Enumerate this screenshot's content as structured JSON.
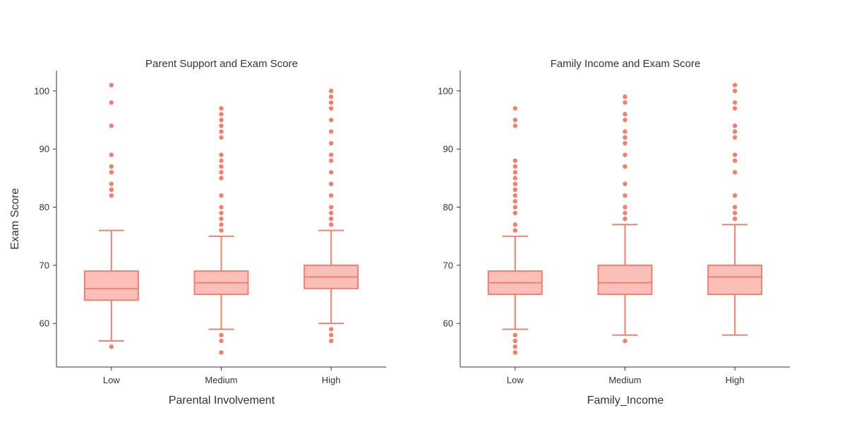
{
  "figure": {
    "ylabel": "Exam Score",
    "style": {
      "box_stroke": "#f08070",
      "box_fill": "#fbbfba",
      "point_color": "#f08070",
      "axis_color": "#333333",
      "text_color": "#333333"
    }
  },
  "chart_data": [
    {
      "type": "box",
      "title": "Parent Support and Exam Score",
      "xlabel": "Parental Involvement",
      "ylabel": "Exam Score",
      "ylim": [
        52.5,
        103.5
      ],
      "yticks": [
        60,
        70,
        80,
        90,
        100
      ],
      "grid": false,
      "categories": [
        "Low",
        "Medium",
        "High"
      ],
      "boxes": [
        {
          "category": "Low",
          "q1": 64,
          "median": 66,
          "q3": 69,
          "whisker_low": 57,
          "whisker_high": 76,
          "outliers": [
            56,
            82,
            83,
            84,
            86,
            87,
            89,
            94,
            98,
            101
          ]
        },
        {
          "category": "Medium",
          "q1": 65,
          "median": 67,
          "q3": 69,
          "whisker_low": 59,
          "whisker_high": 75,
          "outliers": [
            55,
            57,
            58,
            76,
            77,
            78,
            79,
            80,
            82,
            85,
            86,
            87,
            88,
            89,
            92,
            93,
            94,
            95,
            96,
            97
          ]
        },
        {
          "category": "High",
          "q1": 66,
          "median": 68,
          "q3": 70,
          "whisker_low": 60,
          "whisker_high": 76,
          "outliers": [
            57,
            58,
            59,
            77,
            78,
            79,
            80,
            82,
            84,
            86,
            88,
            89,
            91,
            93,
            95,
            97,
            98,
            99,
            100
          ]
        }
      ]
    },
    {
      "type": "box",
      "title": "Family Income and Exam Score",
      "xlabel": "Family_Income",
      "ylabel": "",
      "ylim": [
        52.5,
        103.5
      ],
      "yticks": [
        60,
        70,
        80,
        90,
        100
      ],
      "grid": false,
      "categories": [
        "Low",
        "Medium",
        "High"
      ],
      "boxes": [
        {
          "category": "Low",
          "q1": 65,
          "median": 67,
          "q3": 69,
          "whisker_low": 59,
          "whisker_high": 75,
          "outliers": [
            55,
            56,
            57,
            58,
            76,
            77,
            79,
            80,
            81,
            82,
            83,
            84,
            85,
            86,
            87,
            88,
            94,
            95,
            97
          ]
        },
        {
          "category": "Medium",
          "q1": 65,
          "median": 67,
          "q3": 70,
          "whisker_low": 58,
          "whisker_high": 77,
          "outliers": [
            57,
            78,
            79,
            80,
            82,
            84,
            87,
            89,
            91,
            92,
            93,
            95,
            96,
            98,
            99
          ]
        },
        {
          "category": "High",
          "q1": 65,
          "median": 68,
          "q3": 70,
          "whisker_low": 58,
          "whisker_high": 77,
          "outliers": [
            78,
            79,
            80,
            82,
            86,
            88,
            89,
            92,
            93,
            94,
            97,
            98,
            100,
            101
          ]
        }
      ]
    }
  ]
}
